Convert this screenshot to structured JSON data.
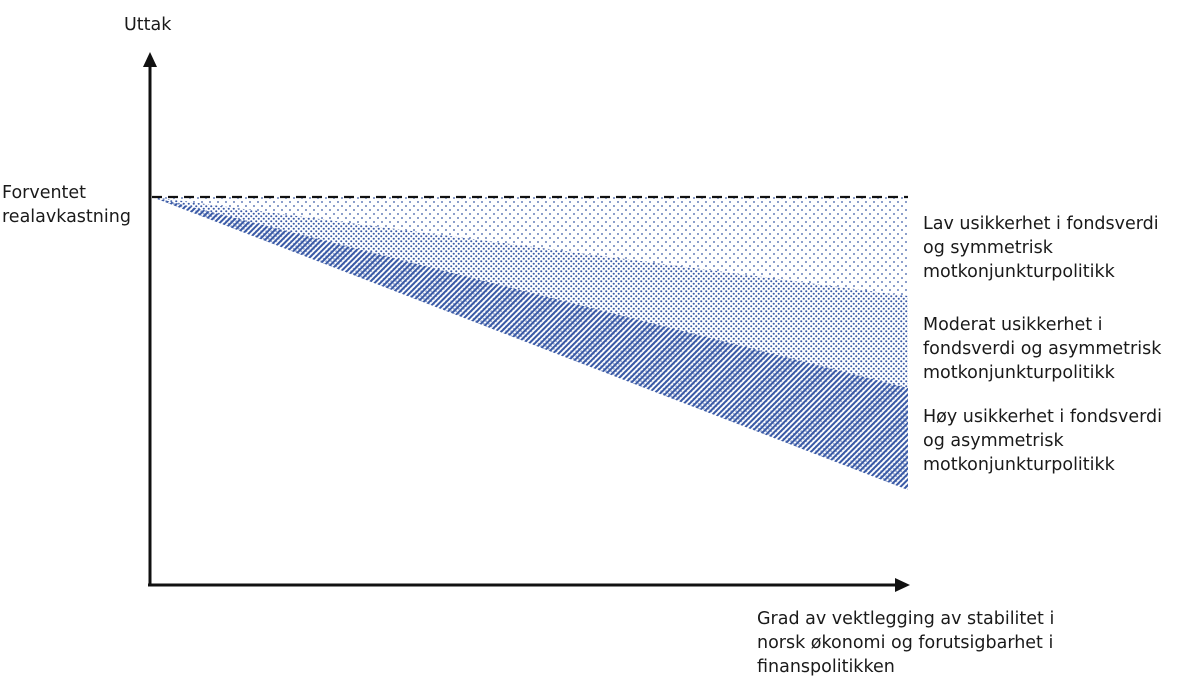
{
  "y_axis": {
    "label": "Uttak"
  },
  "x_axis": {
    "label_lines": [
      "Grad av vektlegging av stabilitet i",
      "norsk økonomi og forutsigbarhet i",
      "finanspolitikken"
    ]
  },
  "reference": {
    "label_lines": [
      "Forventet",
      "realavkastning"
    ],
    "style": "dashed"
  },
  "bands": [
    {
      "label_lines": [
        "Lav usikkerhet i fondsverdi",
        "og symmetrisk",
        "motkonjunkturpolitikk"
      ],
      "pattern": "sparse-dots"
    },
    {
      "label_lines": [
        "Moderat usikkerhet i",
        "fondsverdi og asymmetrisk",
        "motkonjunkturpolitikk"
      ],
      "pattern": "dense-dots"
    },
    {
      "label_lines": [
        "Høy usikkerhet i fondsverdi",
        "og asymmetrisk",
        "motkonjunkturpolitikk"
      ],
      "pattern": "diagonal-hatch"
    }
  ],
  "colors": {
    "axis": "#111111",
    "pattern": "#3a5aa6"
  }
}
